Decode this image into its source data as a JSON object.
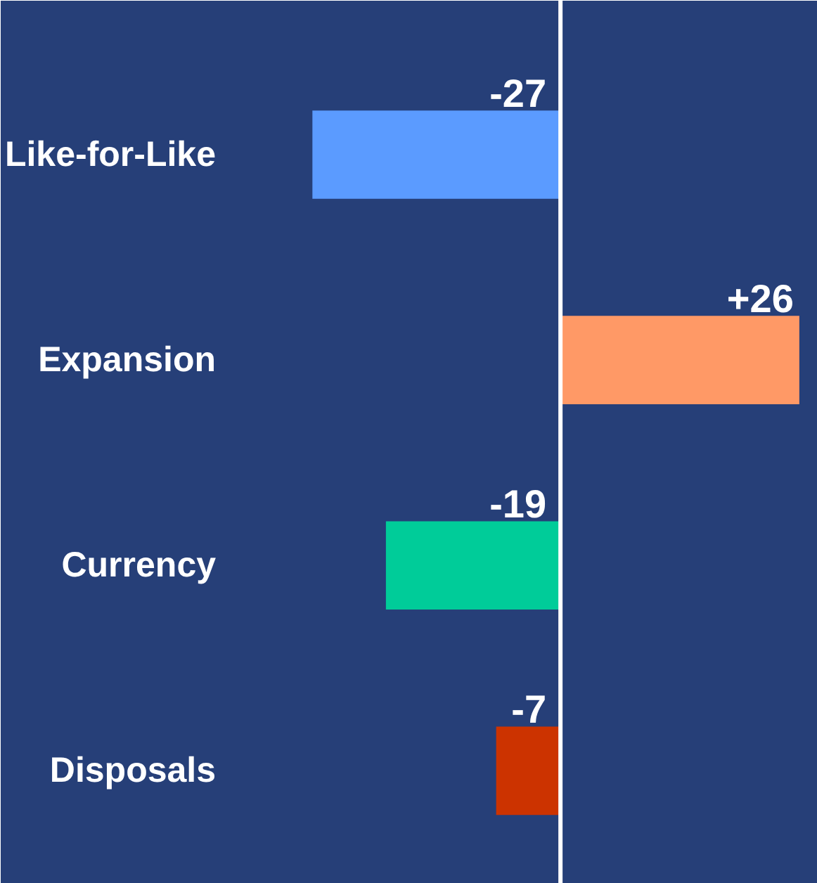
{
  "chart_data": {
    "type": "bar",
    "orientation": "horizontal",
    "categories": [
      "Like-for-Like",
      "Expansion",
      "Currency",
      "Disposals"
    ],
    "values": [
      -27,
      26,
      -19,
      -7
    ],
    "colors": [
      "#5b9bff",
      "#ff9966",
      "#00cc99",
      "#cc3300"
    ],
    "value_labels": [
      "-27",
      "+26",
      "-19",
      "-7"
    ],
    "xlim": [
      -32,
      28
    ],
    "tick_labels": "y",
    "grid": false,
    "ref_lines": [
      {
        "axis": "x",
        "value": 0,
        "color": "#ffffff"
      }
    ]
  }
}
